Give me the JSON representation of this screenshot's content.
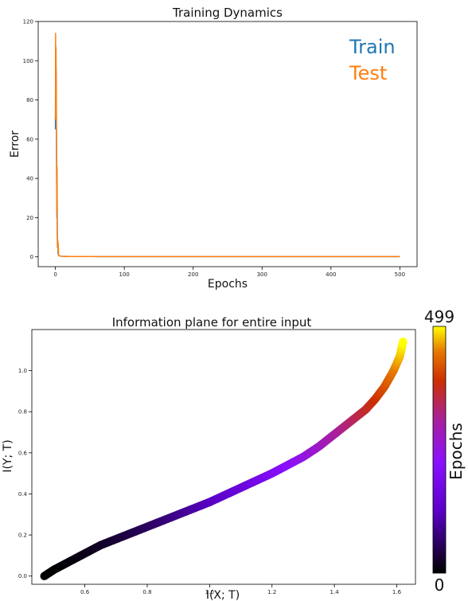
{
  "chart_data": [
    {
      "type": "line",
      "title": "Training Dynamics",
      "xlabel": "Epochs",
      "ylabel": "Error",
      "xlim": [
        -25,
        525
      ],
      "ylim": [
        -5,
        120
      ],
      "xticks": [
        0,
        100,
        200,
        300,
        400,
        500
      ],
      "yticks": [
        0,
        20,
        40,
        60,
        80,
        100,
        120
      ],
      "legend_position": "top-right",
      "series": [
        {
          "name": "Train",
          "color": "#1f77b4",
          "x": [
            0,
            0.3,
            0.6,
            0.9,
            1.2,
            1.5,
            1.8,
            2.1,
            2.4,
            2.7,
            3.0,
            3.4,
            3.8,
            4.3,
            5,
            7,
            10,
            20,
            50,
            100,
            200,
            300,
            400,
            500
          ],
          "y": [
            65,
            105,
            72,
            96,
            85,
            62,
            40,
            20,
            44,
            12,
            5,
            8,
            2,
            1,
            0.6,
            0.4,
            0.3,
            0.2,
            0.15,
            0.1,
            0.1,
            0.1,
            0.1,
            0.1
          ]
        },
        {
          "name": "Test",
          "color": "#ff7f0e",
          "x": [
            0,
            0.25,
            0.5,
            0.8,
            1.1,
            1.4,
            1.7,
            2.0,
            2.3,
            2.6,
            2.9,
            3.2,
            3.6,
            4.0,
            4.5,
            5,
            7,
            10,
            20,
            50,
            100,
            200,
            300,
            400,
            500
          ],
          "y": [
            70,
            114,
            78,
            107,
            90,
            66,
            45,
            22,
            46,
            14,
            6,
            9,
            3,
            7,
            1.2,
            0.7,
            0.4,
            0.3,
            0.2,
            0.15,
            0.1,
            0.1,
            0.1,
            0.1,
            0.1
          ]
        }
      ]
    },
    {
      "type": "scatter",
      "title": "Information plane for entire input",
      "xlabel": "I(X; T)",
      "ylabel": "I(Y; T)",
      "xlim": [
        0.43,
        1.66
      ],
      "ylim": [
        -0.04,
        1.2
      ],
      "xticks": [
        0.6,
        0.8,
        1.0,
        1.2,
        1.4,
        1.6
      ],
      "yticks": [
        0.0,
        0.2,
        0.4,
        0.6,
        0.8,
        1.0
      ],
      "color_by": "epoch",
      "colormap": "gnuplot",
      "colorbar": {
        "label": "Epochs",
        "min": 0,
        "max": 499,
        "ticks": [
          "0",
          "499"
        ]
      },
      "n_epochs": 500,
      "path_x": [
        0.47,
        0.5,
        0.55,
        0.6,
        0.65,
        0.7,
        0.8,
        0.9,
        1.0,
        1.1,
        1.2,
        1.3,
        1.35,
        1.4,
        1.45,
        1.5,
        1.53,
        1.56,
        1.59,
        1.61,
        1.62
      ],
      "path_y": [
        0.0,
        0.03,
        0.07,
        0.11,
        0.15,
        0.18,
        0.24,
        0.3,
        0.36,
        0.43,
        0.5,
        0.58,
        0.63,
        0.69,
        0.75,
        0.81,
        0.86,
        0.92,
        1.0,
        1.07,
        1.14
      ]
    }
  ]
}
